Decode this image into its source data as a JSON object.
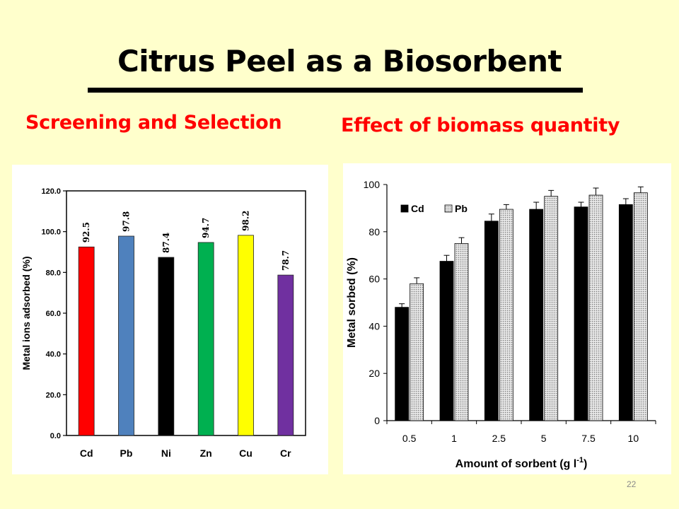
{
  "slide": {
    "title": "Citrus Peel as a Biosorbent",
    "subtitle_left": "Screening and Selection",
    "subtitle_right": "Effect of biomass quantity",
    "slide_number": "22"
  },
  "colors": {
    "background": "#FFFFCC",
    "subtitle": "#FF0000",
    "bar_Cd": "#FF0000",
    "bar_Pb": "#4F81BD",
    "bar_Ni": "#000000",
    "bar_Zn": "#00B050",
    "bar_Cu": "#FFFF00",
    "bar_Cr": "#7030A0"
  },
  "chart_data": [
    {
      "type": "bar",
      "title": "",
      "xlabel": "",
      "ylabel": "Metal ions adsorbed (%)",
      "categories": [
        "Cd",
        "Pb",
        "Ni",
        "Zn",
        "Cu",
        "Cr"
      ],
      "values": [
        92.5,
        97.8,
        87.4,
        94.7,
        98.2,
        78.7
      ],
      "value_labels": [
        "92.5",
        "97.8",
        "87.4",
        "94.7",
        "98.2",
        "78.7"
      ],
      "bar_colors": [
        "#FF0000",
        "#4F81BD",
        "#000000",
        "#00B050",
        "#FFFF00",
        "#7030A0"
      ],
      "ylim": [
        0,
        120
      ],
      "yticks": [
        "0.0",
        "20.0",
        "40.0",
        "60.0",
        "80.0",
        "100.0",
        "120.0"
      ],
      "grid": false,
      "legend": "none"
    },
    {
      "type": "bar",
      "title": "",
      "xlabel": "Amount of sorbent (g l",
      "xlabel_sup": "-1",
      "xlabel_close": ")",
      "ylabel": "Metal sorbed (%)",
      "categories": [
        "0.5",
        "1",
        "2.5",
        "5",
        "7.5",
        "10"
      ],
      "series": [
        {
          "name": "Cd",
          "values": [
            48,
            67.5,
            84.5,
            89.5,
            90.5,
            91.5
          ],
          "errors": [
            1.5,
            2.5,
            3,
            3,
            2,
            2.5
          ],
          "color": "#000000"
        },
        {
          "name": "Pb",
          "values": [
            58,
            75,
            89.5,
            95,
            95.5,
            96.5
          ],
          "errors": [
            2.5,
            2.5,
            2,
            2.5,
            3,
            2.5
          ],
          "color": "#BFBFBF"
        }
      ],
      "ylim": [
        0,
        100
      ],
      "yticks": [
        "0",
        "20",
        "40",
        "60",
        "80",
        "100"
      ],
      "grid": false,
      "legend": "top-left"
    }
  ]
}
